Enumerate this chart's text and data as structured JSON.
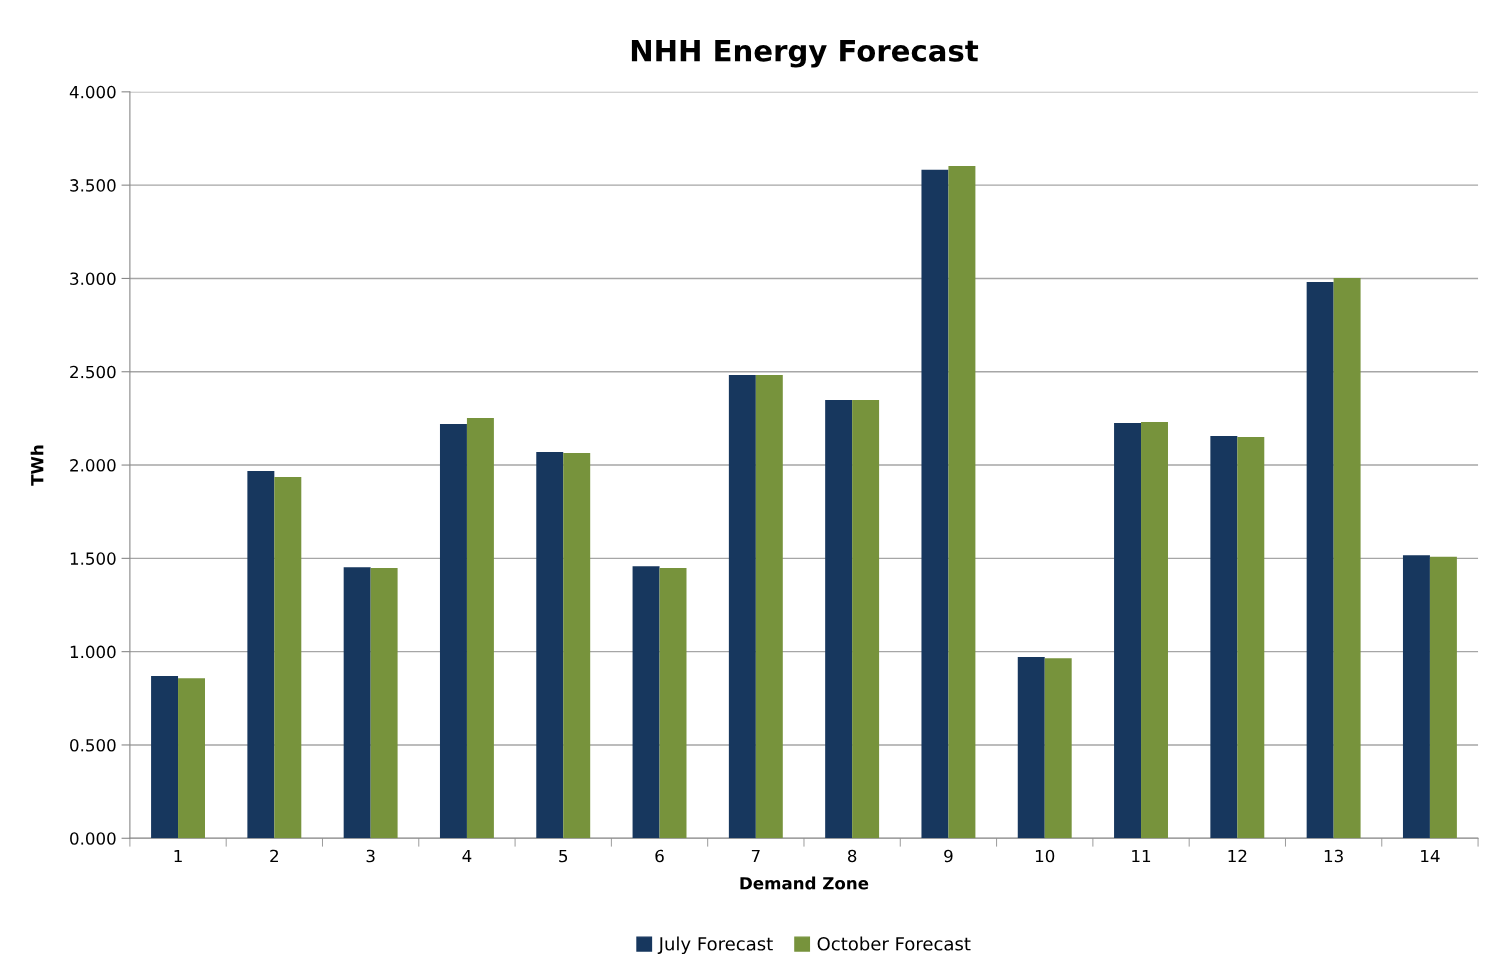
{
  "chart_data": {
    "type": "bar",
    "title": "NHH Energy Forecast",
    "xlabel": "Demand Zone",
    "ylabel": "TWh",
    "categories": [
      "1",
      "2",
      "3",
      "4",
      "5",
      "6",
      "7",
      "8",
      "9",
      "10",
      "11",
      "12",
      "13",
      "14"
    ],
    "series": [
      {
        "name": "July Forecast",
        "color": "#17375e",
        "values": [
          0.869,
          1.968,
          1.453,
          2.22,
          2.07,
          1.458,
          2.483,
          2.349,
          3.582,
          0.971,
          2.225,
          2.156,
          2.981,
          1.517
        ]
      },
      {
        "name": "October Forecast",
        "color": "#77933c",
        "values": [
          0.858,
          1.936,
          1.448,
          2.252,
          2.064,
          1.448,
          2.483,
          2.349,
          3.603,
          0.965,
          2.231,
          2.15,
          3.003,
          1.509
        ]
      }
    ],
    "ylim": [
      0,
      4
    ],
    "yticks": [
      {
        "value": 0,
        "label": "0.000"
      },
      {
        "value": 0.5,
        "label": "0.500"
      },
      {
        "value": 1,
        "label": "1.000"
      },
      {
        "value": 1.5,
        "label": "1.500"
      },
      {
        "value": 2,
        "label": "2.000"
      },
      {
        "value": 2.5,
        "label": "2.500"
      },
      {
        "value": 3,
        "label": "3.000"
      },
      {
        "value": 3.5,
        "label": "3.500"
      },
      {
        "value": 4,
        "label": "4.000"
      }
    ],
    "grid": "y",
    "legend": "bottom"
  }
}
